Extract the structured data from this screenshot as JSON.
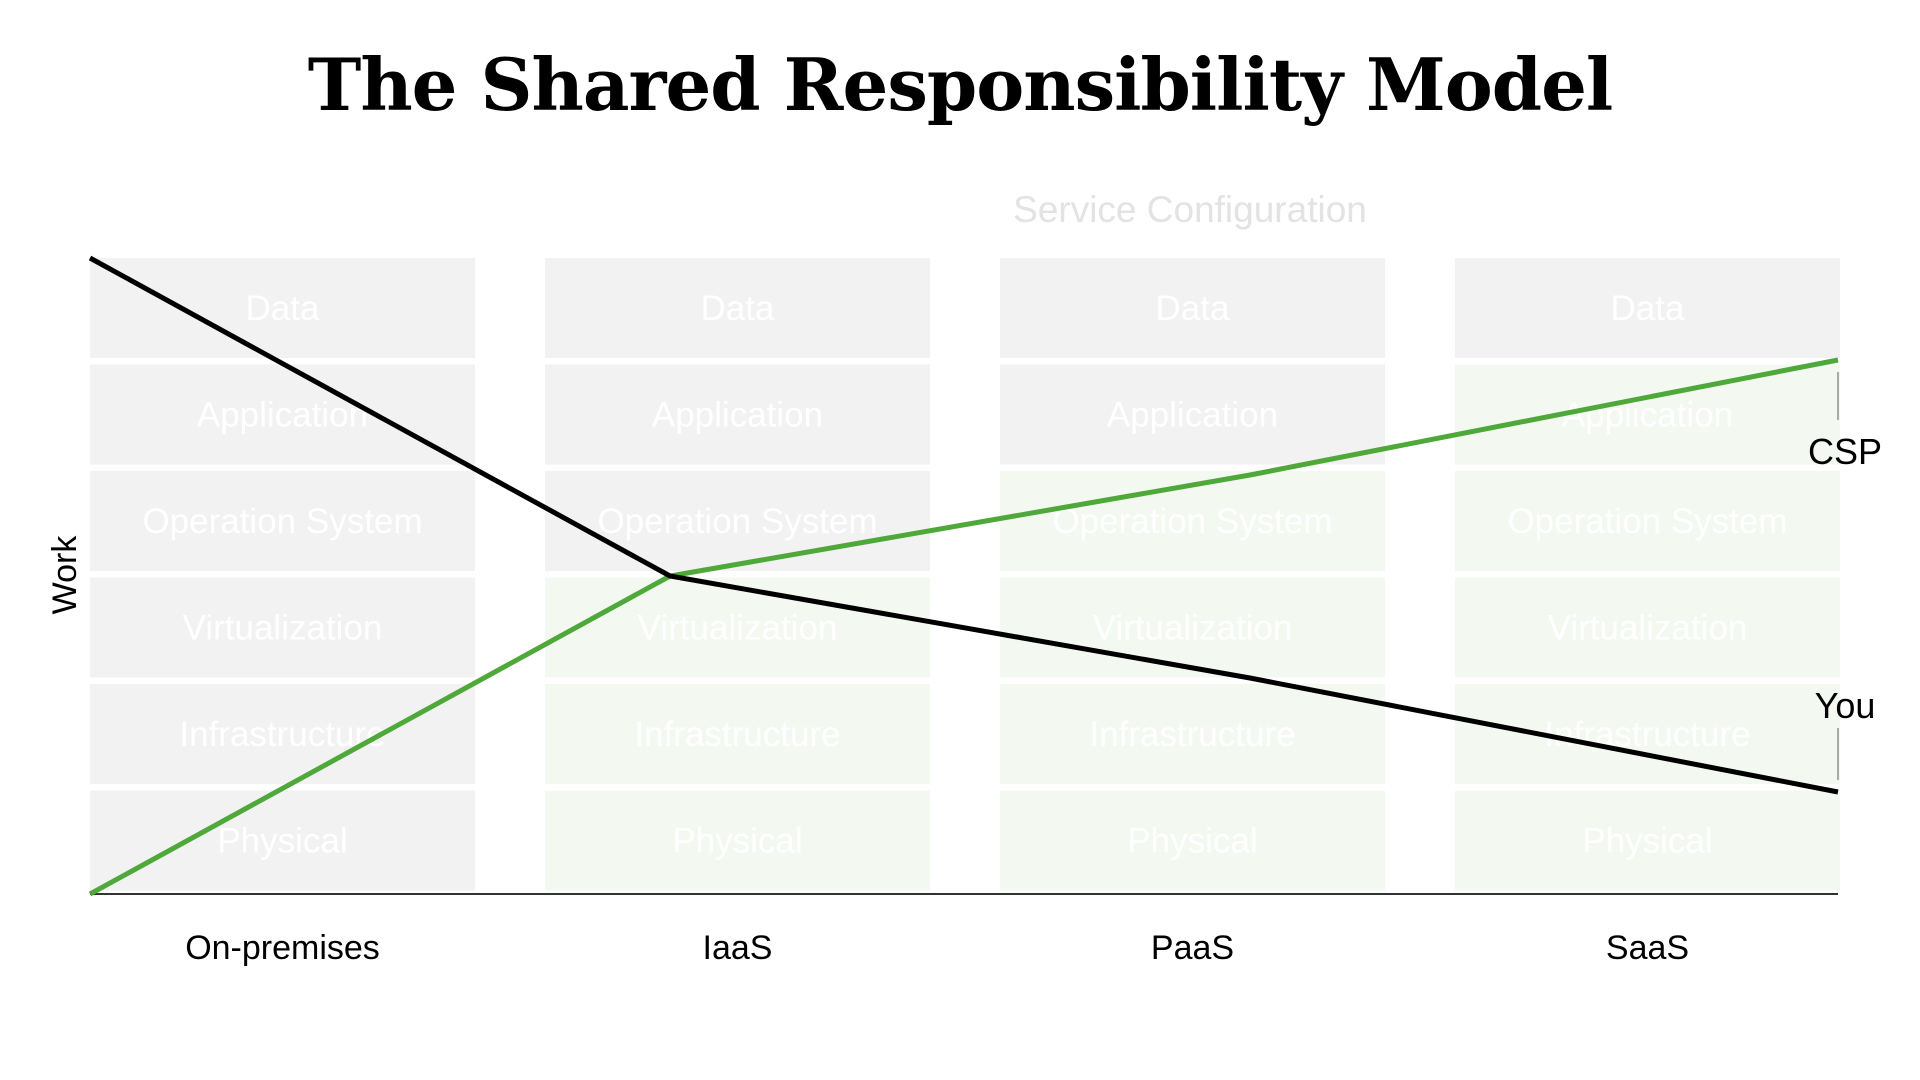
{
  "title": "The Shared Responsibility Model",
  "header_label": "Service Configuration",
  "y_axis_label": "Work",
  "layers": [
    "Data",
    "Application",
    "Operation System",
    "Virtualization",
    "Infrastructure",
    "Physical"
  ],
  "models": [
    {
      "name": "On-premises",
      "csp_managed_layers": 0
    },
    {
      "name": "IaaS",
      "csp_managed_layers": 3
    },
    {
      "name": "PaaS",
      "csp_managed_layers": 4
    },
    {
      "name": "SaaS",
      "csp_managed_layers": 5
    }
  ],
  "lines": {
    "csp": {
      "label": "CSP",
      "color": "#4ea83a"
    },
    "you": {
      "label": "You",
      "color": "#000000"
    }
  },
  "colors": {
    "user_layer": "#f2f2f2",
    "csp_layer": "#f3f9f1",
    "layer_text": "#ffffff",
    "header_text": "#e3e3e3"
  }
}
